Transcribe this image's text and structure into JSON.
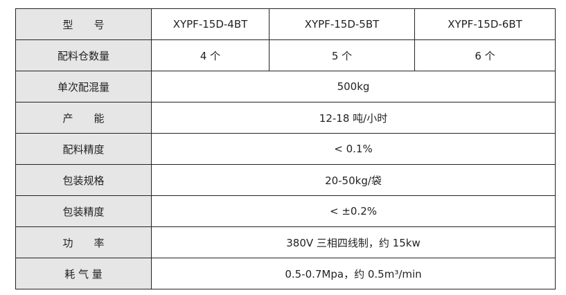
{
  "table": {
    "header": [
      "型　　号",
      "XYPF-15D-4BT",
      "XYPF-15D-5BT",
      "XYPF-15D-6BT"
    ],
    "rows": [
      [
        "配料仓数量",
        "4 个",
        "5 个",
        "6 个"
      ],
      [
        "单次配混量",
        "500kg"
      ],
      [
        "产　　能",
        "12-18 吨/小时"
      ],
      [
        "配料精度",
        "< 0.1%"
      ],
      [
        "包装规格",
        "20-50kg/袋"
      ],
      [
        "包装精度",
        "< ±0.2%"
      ],
      [
        "功　　率",
        "380V 三相四线制，约 15kw"
      ],
      [
        "耗 气 量",
        "0.5-0.7Mpa，约 0.5m³/min"
      ]
    ]
  }
}
